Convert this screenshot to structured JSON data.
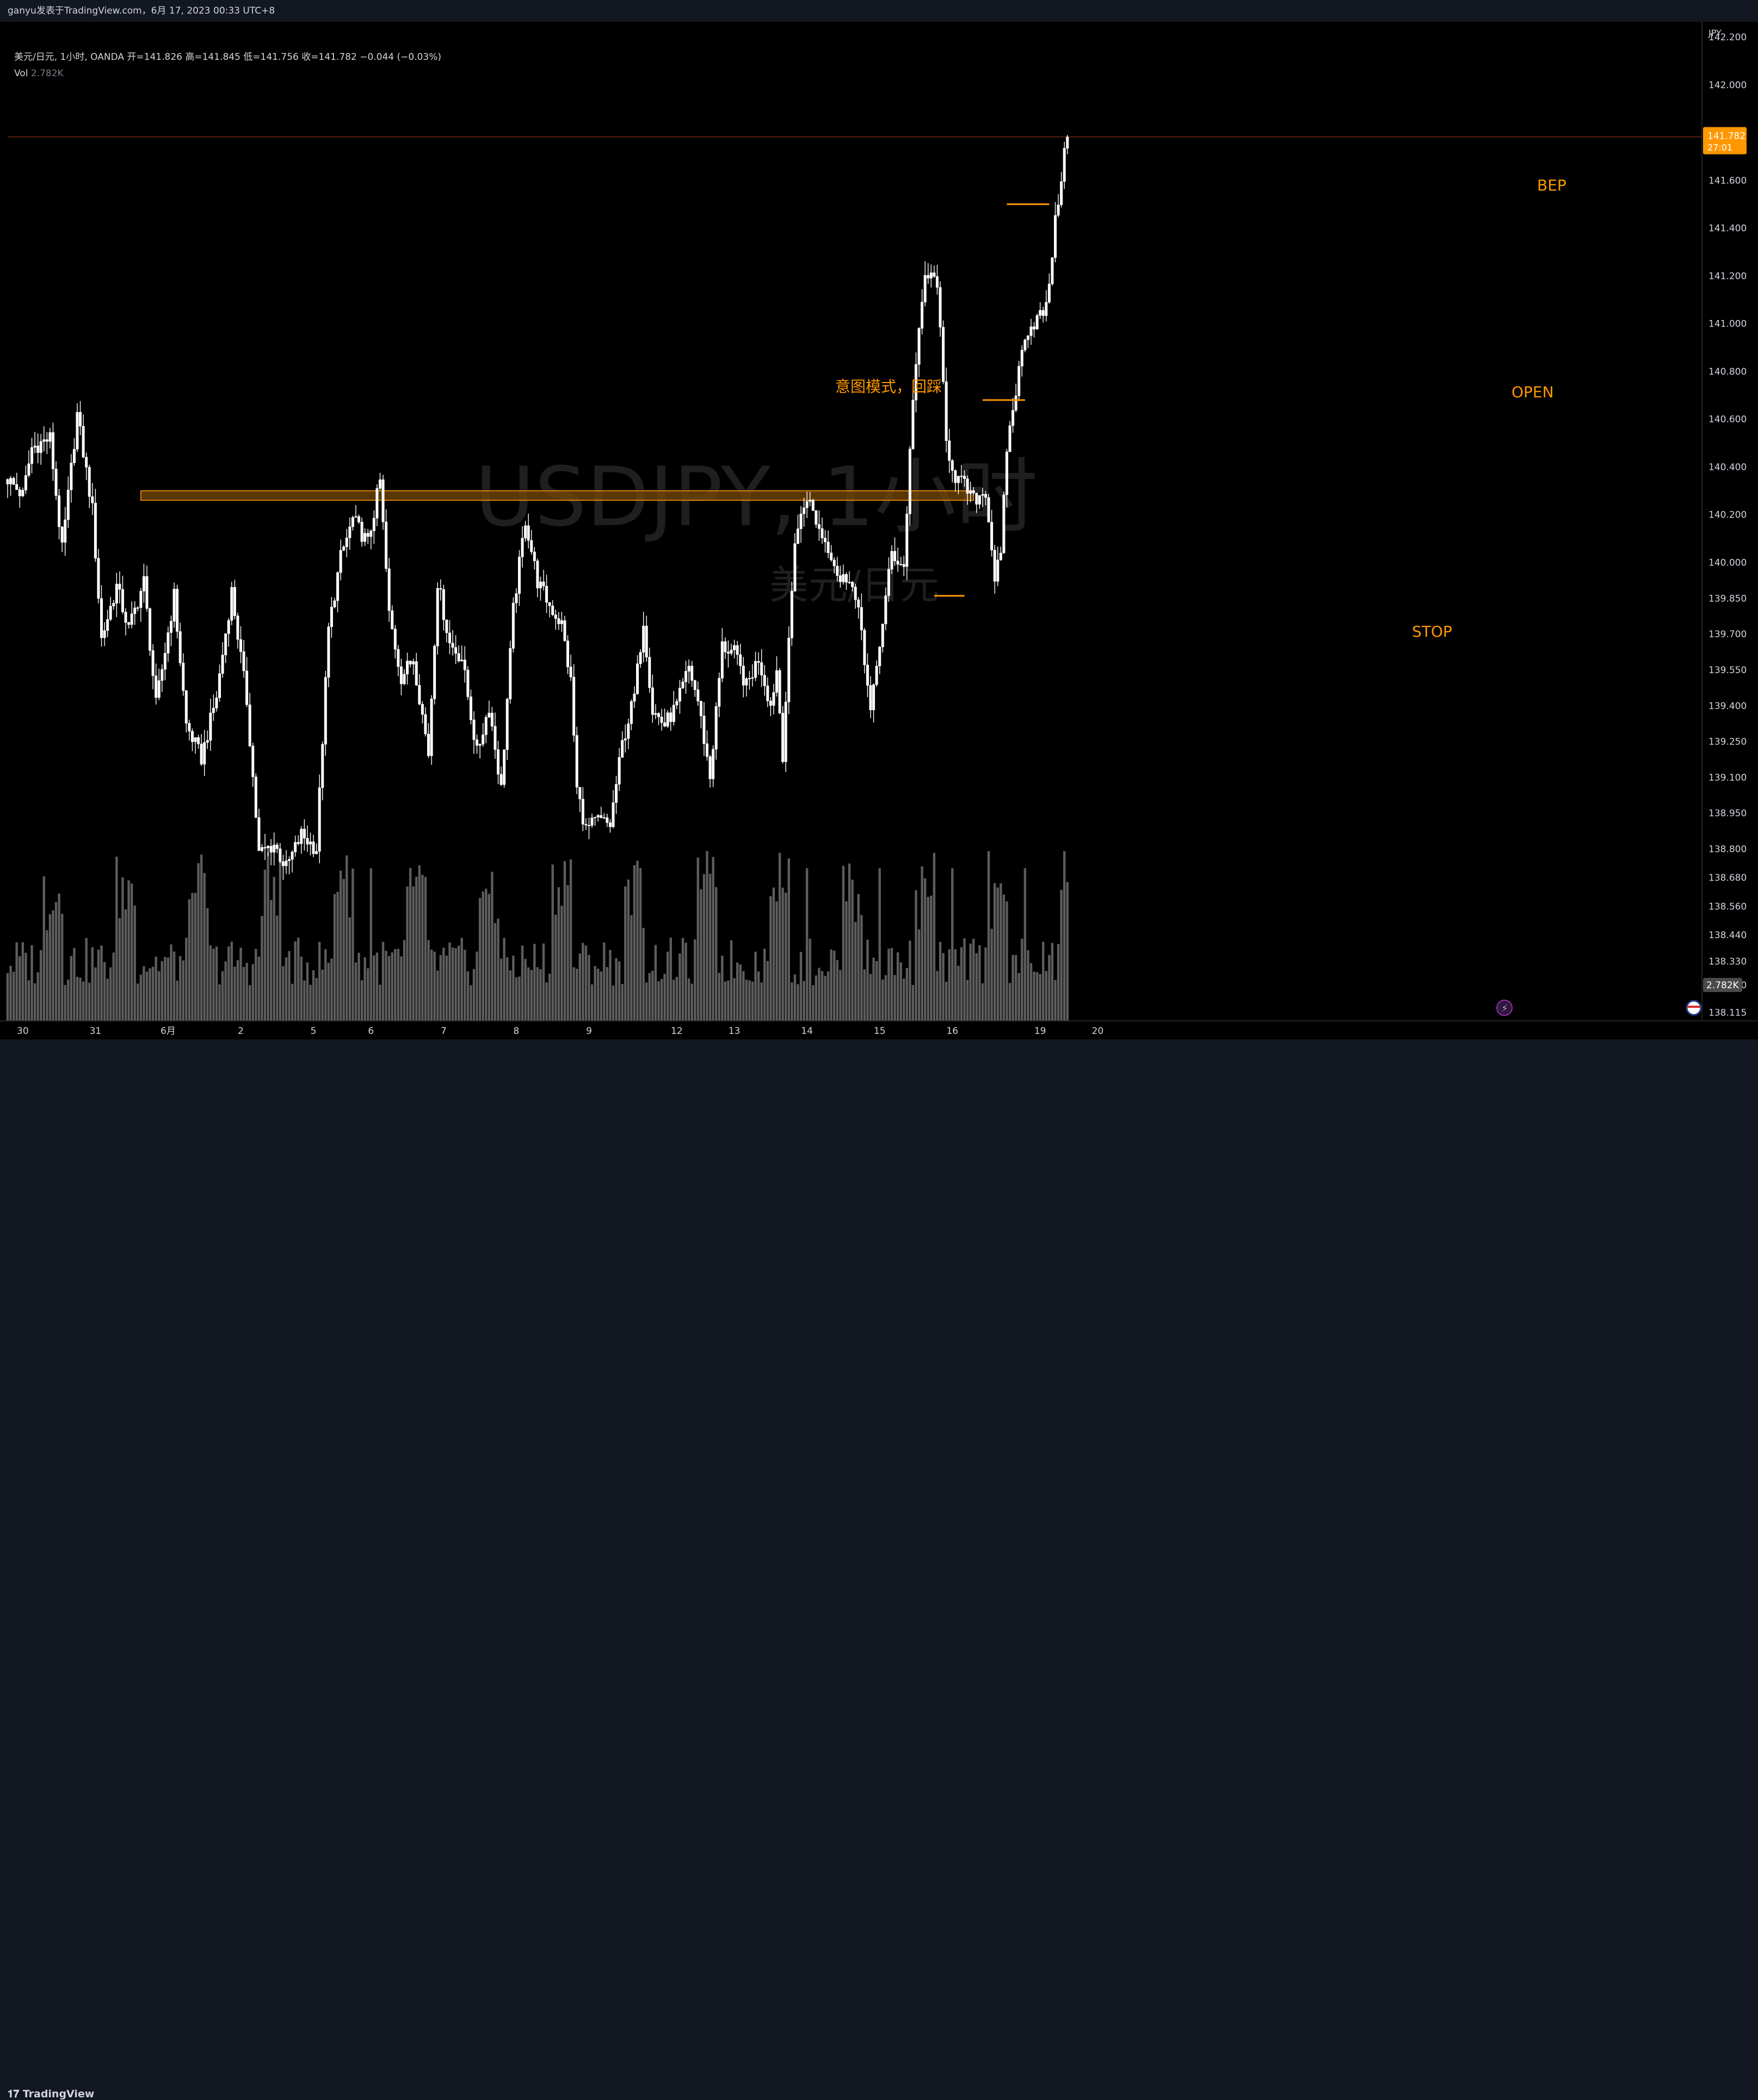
{
  "header": {
    "title": "ganyu发表于TradingView.com，6月 17, 2023 00:33 UTC+8"
  },
  "legend": {
    "symbol_line": "美元/日元, 1小时, OANDA  开=141.826  高=141.845  低=141.756  收=141.782  −0.044 (−0.03%)",
    "vol_label": "Vol",
    "vol_value": "2.782K"
  },
  "watermark": {
    "symbol": "USDJPY, 1小时",
    "name": "美元/日元"
  },
  "footer": {
    "brand": "TradingView"
  },
  "colors": {
    "background": "#000000",
    "candle": "#ffffff",
    "volume": "#5d5d5d",
    "accent": "#ff9800",
    "price_line": "#5a1f12"
  },
  "chart_data": {
    "type": "candlestick",
    "currency": "JPY",
    "ylim": [
      138.08,
      142.26
    ],
    "price_ticks": [
      "142.200",
      "142.000",
      "141.600",
      "141.400",
      "141.200",
      "141.000",
      "140.800",
      "140.600",
      "140.400",
      "140.200",
      "140.000",
      "139.850",
      "139.700",
      "139.550",
      "139.400",
      "139.250",
      "139.100",
      "138.950",
      "138.800",
      "138.680",
      "138.560",
      "138.440",
      "138.330",
      "138.230",
      "138.115"
    ],
    "x_ticks": [
      {
        "label": "30",
        "bar": 5
      },
      {
        "label": "31",
        "bar": 29
      },
      {
        "label": "6月",
        "bar": 53
      },
      {
        "label": "2",
        "bar": 77
      },
      {
        "label": "5",
        "bar": 101
      },
      {
        "label": "6",
        "bar": 120
      },
      {
        "label": "7",
        "bar": 144
      },
      {
        "label": "8",
        "bar": 168
      },
      {
        "label": "9",
        "bar": 192
      },
      {
        "label": "12",
        "bar": 221
      },
      {
        "label": "13",
        "bar": 240
      },
      {
        "label": "14",
        "bar": 264
      },
      {
        "label": "15",
        "bar": 288
      },
      {
        "label": "16",
        "bar": 312
      },
      {
        "label": "19",
        "bar": 341
      },
      {
        "label": "20",
        "bar": 360
      }
    ],
    "anchors": [
      [
        0,
        140.35
      ],
      [
        5,
        140.28
      ],
      [
        8,
        140.48
      ],
      [
        14,
        140.52
      ],
      [
        18,
        140.05
      ],
      [
        23,
        140.62
      ],
      [
        28,
        140.22
      ],
      [
        31,
        139.68
      ],
      [
        36,
        139.9
      ],
      [
        40,
        139.72
      ],
      [
        45,
        139.92
      ],
      [
        49,
        139.4
      ],
      [
        55,
        139.86
      ],
      [
        59,
        139.32
      ],
      [
        64,
        139.18
      ],
      [
        69,
        139.44
      ],
      [
        74,
        139.88
      ],
      [
        79,
        139.42
      ],
      [
        83,
        138.78
      ],
      [
        88,
        138.82
      ],
      [
        92,
        138.72
      ],
      [
        97,
        138.86
      ],
      [
        102,
        138.8
      ],
      [
        106,
        139.72
      ],
      [
        110,
        140.02
      ],
      [
        114,
        140.18
      ],
      [
        119,
        140.08
      ],
      [
        123,
        140.34
      ],
      [
        126,
        139.78
      ],
      [
        130,
        139.52
      ],
      [
        134,
        139.6
      ],
      [
        139,
        139.2
      ],
      [
        142,
        139.92
      ],
      [
        146,
        139.66
      ],
      [
        150,
        139.6
      ],
      [
        155,
        139.2
      ],
      [
        159,
        139.4
      ],
      [
        163,
        139.05
      ],
      [
        167,
        139.8
      ],
      [
        171,
        140.18
      ],
      [
        175,
        139.92
      ],
      [
        179,
        139.82
      ],
      [
        183,
        139.74
      ],
      [
        186,
        139.5
      ],
      [
        188,
        139.05
      ],
      [
        191,
        138.88
      ],
      [
        195,
        138.92
      ],
      [
        199,
        138.9
      ],
      [
        203,
        139.24
      ],
      [
        207,
        139.44
      ],
      [
        210,
        139.76
      ],
      [
        213,
        139.38
      ],
      [
        217,
        139.32
      ],
      [
        221,
        139.4
      ],
      [
        225,
        139.56
      ],
      [
        228,
        139.42
      ],
      [
        232,
        139.1
      ],
      [
        236,
        139.65
      ],
      [
        240,
        139.62
      ],
      [
        244,
        139.48
      ],
      [
        248,
        139.6
      ],
      [
        252,
        139.4
      ],
      [
        254,
        139.55
      ],
      [
        256,
        139.2
      ],
      [
        260,
        140.1
      ],
      [
        264,
        140.28
      ],
      [
        268,
        140.14
      ],
      [
        272,
        140.04
      ],
      [
        275,
        139.92
      ],
      [
        278,
        139.95
      ],
      [
        282,
        139.72
      ],
      [
        285,
        139.36
      ],
      [
        288,
        139.66
      ],
      [
        292,
        140.04
      ],
      [
        296,
        139.98
      ],
      [
        299,
        140.7
      ],
      [
        303,
        141.2
      ],
      [
        307,
        141.18
      ],
      [
        310,
        140.5
      ],
      [
        313,
        140.36
      ],
      [
        316,
        140.32
      ],
      [
        319,
        140.26
      ],
      [
        323,
        140.3
      ],
      [
        326,
        139.94
      ],
      [
        328,
        140.02
      ],
      [
        330,
        140.48
      ],
      [
        333,
        140.72
      ],
      [
        336,
        140.96
      ],
      [
        340,
        141.02
      ],
      [
        343,
        141.06
      ],
      [
        346,
        141.42
      ],
      [
        349,
        141.72
      ],
      [
        350,
        141.8
      ]
    ],
    "volume_ylim": [
      0,
      12000
    ],
    "last_price": 141.782,
    "last_price_label": "141.782",
    "countdown": "27:01",
    "volume_label": "2.782K",
    "zone": {
      "from_bar": 44,
      "to_bar": 319,
      "low": 140.26,
      "high": 140.3
    },
    "annotations": [
      {
        "text": "意图模式，回踩",
        "bar": 183,
        "price": 140.73
      },
      {
        "text": "BEP",
        "bar": 339,
        "price": 141.5,
        "line_from_bar": 330,
        "line_to_bar": 344
      },
      {
        "text": "OPEN",
        "bar": 335,
        "price": 140.68,
        "line_from_bar": 322,
        "line_to_bar": 336
      },
      {
        "text": "STOP",
        "bar": 306,
        "price": 139.86,
        "line_from_bar": 306,
        "line_to_bar": 316
      }
    ]
  }
}
